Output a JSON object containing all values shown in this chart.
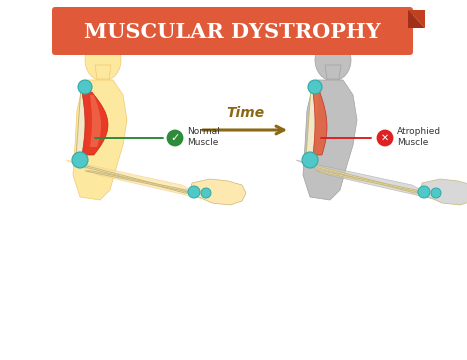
{
  "title": "MUSCULAR DYSTROPHY",
  "title_bg_color": "#e05a3a",
  "title_text_color": "#ffffff",
  "background_color": "#ffffff",
  "time_label": "Time",
  "time_arrow_color": "#8b6914",
  "normal_label": "Normal\nMuscle",
  "normal_line_color": "#2e8b3a",
  "atrophied_label": "Atrophied\nMuscle",
  "atrophied_line_color": "#dd2222",
  "healthy_body_color": "#fde8a0",
  "healthy_body_edge": "#f5c870",
  "atrophied_body_color": "#c0c0c0",
  "atrophied_body_edge": "#a0a0a0",
  "bone_color": "#f0e8c8",
  "bone_edge_color": "#c8b878",
  "muscle_healthy_color1": "#e83020",
  "muscle_healthy_color2": "#f07050",
  "muscle_atrophied_color": "#e06040",
  "joint_color": "#50c8c8",
  "joint_edge": "#30a8a8",
  "skin_color_healthy": "#fde8b0",
  "skin_color_atrophied": "#d8d8d8",
  "forearm_skin_healthy": "#fce0a0",
  "forearm_skin_atrophied": "#cccccc"
}
